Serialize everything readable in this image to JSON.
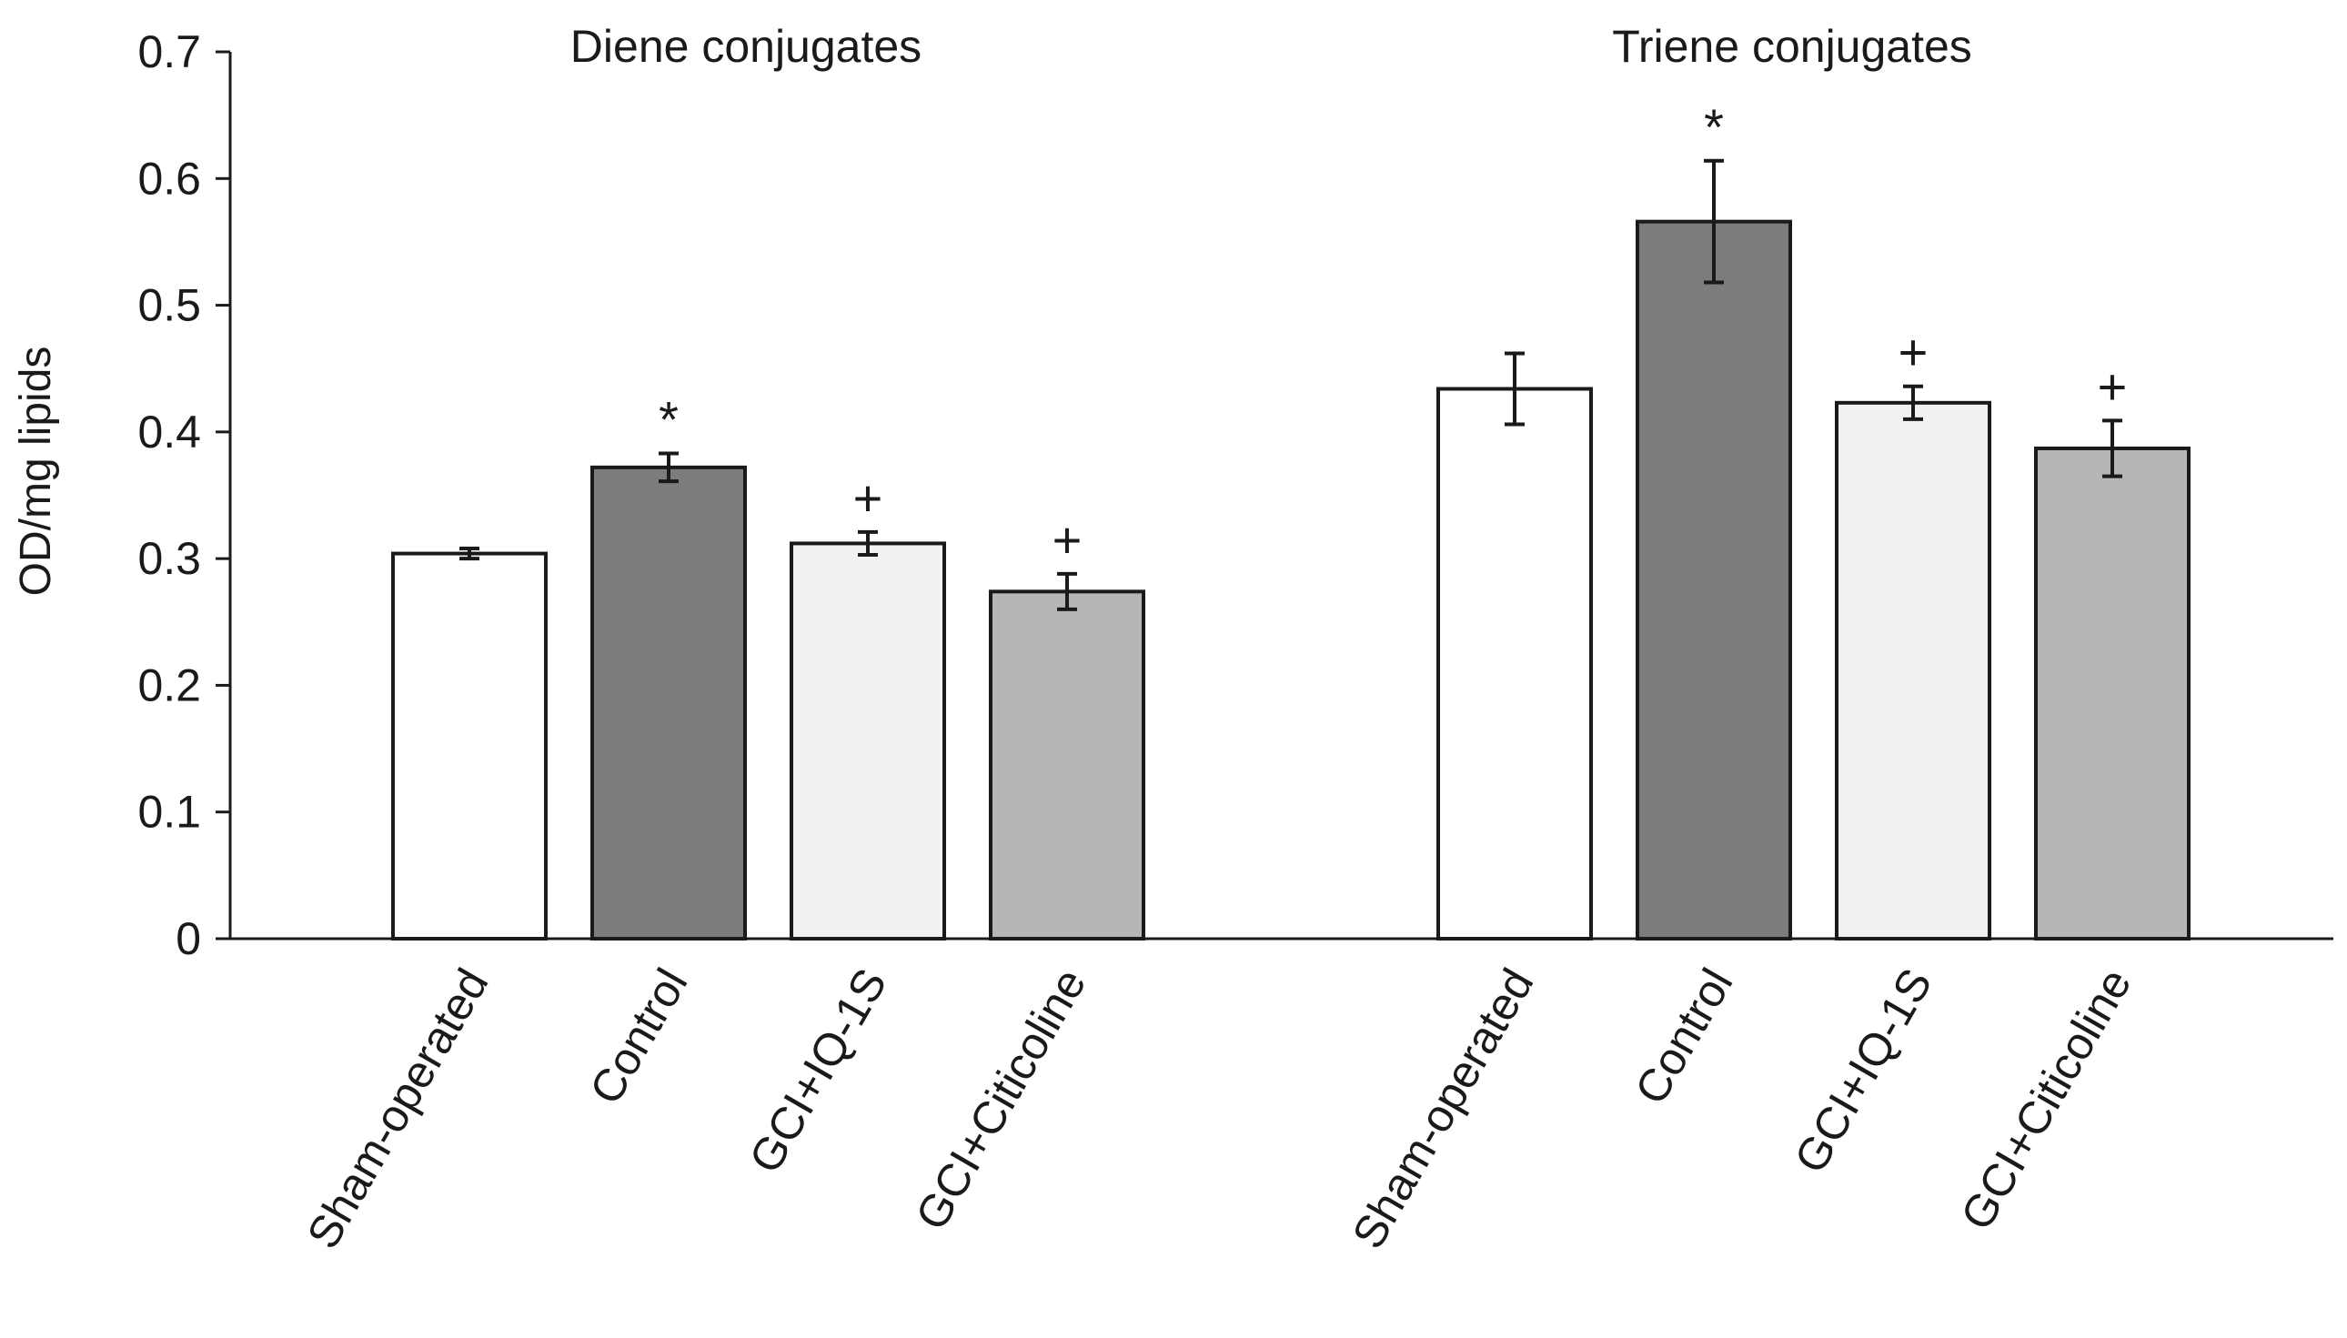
{
  "chart_data": {
    "type": "bar",
    "title": "",
    "xlabel": "",
    "ylabel": "OD/mg lipids",
    "ylim": [
      0,
      0.7
    ],
    "yticks": [
      "0",
      "0.1",
      "0.2",
      "0.3",
      "0.4",
      "0.5",
      "0.6",
      "0.7"
    ],
    "grid": false,
    "categories": [
      "Sham-operated",
      "Control",
      "GCI+IQ-1S",
      "GCI+Citicoline"
    ],
    "colors": [
      "#ffffff",
      "#7a7d7b",
      "#f3f1f0",
      "#b6b6b6"
    ],
    "groups": [
      {
        "title": "Diene conjugates",
        "values": [
          0.304,
          0.372,
          0.312,
          0.274
        ],
        "errors": [
          0.004,
          0.011,
          0.009,
          0.014
        ],
        "annotations": [
          "",
          "*",
          "+",
          "+"
        ]
      },
      {
        "title": "Triene conjugates",
        "values": [
          0.434,
          0.566,
          0.423,
          0.387
        ],
        "errors": [
          0.028,
          0.048,
          0.013,
          0.022
        ],
        "annotations": [
          "",
          "*",
          "+",
          "+"
        ]
      }
    ]
  }
}
